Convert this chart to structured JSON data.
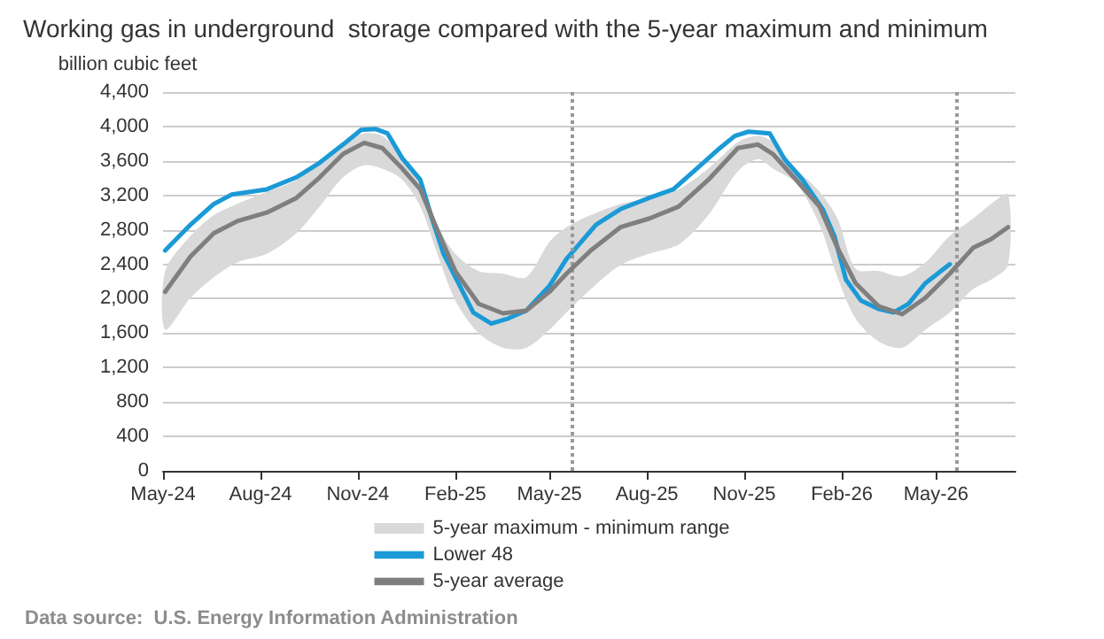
{
  "chart_data": {
    "type": "line",
    "title": "Working gas in underground  storage compared with the 5-year maximum and minimum",
    "ylabel": "billion cubic feet",
    "annotations": [
      "Data source:  U.S. Energy Information Administration"
    ],
    "xlim": [
      "2024-05-01",
      "2026-07-15"
    ],
    "xticks": [
      {
        "value": "2024-05-01",
        "label": "May-24"
      },
      {
        "value": "2024-08-01",
        "label": "Aug-24"
      },
      {
        "value": "2024-11-01",
        "label": "Nov-24"
      },
      {
        "value": "2025-02-01",
        "label": "Feb-25"
      },
      {
        "value": "2025-05-01",
        "label": "May-25"
      },
      {
        "value": "2025-08-01",
        "label": "Aug-25"
      },
      {
        "value": "2025-11-01",
        "label": "Nov-25"
      },
      {
        "value": "2026-02-01",
        "label": "Feb-26"
      },
      {
        "value": "2026-05-01",
        "label": "May-26"
      }
    ],
    "ylim": [
      0,
      4400
    ],
    "yticks": [
      0,
      400,
      800,
      {
        "value": 1200,
        "label": "1,200"
      },
      {
        "value": 1600,
        "label": "1,600"
      },
      {
        "value": 2000,
        "label": "2,000"
      },
      {
        "value": 2400,
        "label": "2,400"
      },
      {
        "value": 2800,
        "label": "2,800"
      },
      {
        "value": 3200,
        "label": "3,200"
      },
      {
        "value": 3600,
        "label": "3,600"
      },
      {
        "value": 4000,
        "label": "4,000"
      },
      {
        "value": 4400,
        "label": "4,400"
      }
    ],
    "grid": "y",
    "legend": "bottom",
    "line_style": "solid",
    "marker": "none",
    "ref_lines": [
      {
        "axis": "x",
        "value": "2025-05-22",
        "color": "#999999",
        "line_style": "dotted"
      },
      {
        "axis": "x",
        "value": "2026-05-21",
        "color": "#999999",
        "line_style": "dotted"
      }
    ],
    "series": [
      {
        "name": "5-year maximum - minimum range",
        "type": "area",
        "color": "#d9d9d9",
        "x": [
          "2024-05-03",
          "2024-05-27",
          "2024-06-18",
          "2024-07-10",
          "2024-08-07",
          "2024-09-04",
          "2024-09-26",
          "2024-10-18",
          "2024-11-07",
          "2024-11-24",
          "2024-12-13",
          "2024-12-30",
          "2025-01-15",
          "2025-02-01",
          "2025-02-23",
          "2025-03-18",
          "2025-04-09",
          "2025-05-01",
          "2025-05-17",
          "2025-06-09",
          "2025-07-07",
          "2025-08-03",
          "2025-08-31",
          "2025-09-28",
          "2025-10-26",
          "2025-11-14",
          "2025-11-28",
          "2025-12-20",
          "2026-01-11",
          "2026-01-28",
          "2026-02-14",
          "2026-03-08",
          "2026-03-30",
          "2026-04-21",
          "2026-05-14",
          "2026-06-05",
          "2026-06-22",
          "2026-07-08"
        ],
        "values": [
          null,
          null,
          null,
          null,
          null,
          null,
          null,
          null,
          null,
          null,
          null,
          null,
          null,
          null,
          null,
          null,
          null,
          null,
          null,
          null,
          null,
          null,
          null,
          null,
          null,
          null,
          null,
          null,
          null,
          null,
          null,
          null,
          null,
          null,
          null,
          null,
          null,
          null
        ],
        "lower": [
          1640,
          2010,
          2250,
          2420,
          2520,
          2760,
          3070,
          3410,
          3550,
          3510,
          3380,
          3070,
          2520,
          1980,
          1600,
          1430,
          1430,
          1640,
          1840,
          2110,
          2390,
          2520,
          2630,
          2970,
          3480,
          3620,
          3510,
          3340,
          2860,
          2250,
          1770,
          1500,
          1430,
          1640,
          1840,
          2110,
          2220,
          2390
        ],
        "upper": [
          2320,
          2730,
          2970,
          3100,
          3240,
          3380,
          3580,
          3820,
          3920,
          3890,
          3650,
          3410,
          2860,
          2520,
          2320,
          2290,
          2250,
          2660,
          2830,
          2970,
          3100,
          3170,
          3270,
          3510,
          3820,
          3890,
          3820,
          3510,
          3240,
          2930,
          2350,
          2320,
          2260,
          2420,
          2730,
          2930,
          3100,
          3210
        ]
      },
      {
        "name": "Lower 48",
        "color": "#1a9ad6",
        "x": [
          "2024-05-03",
          "2024-05-27",
          "2024-06-18",
          "2024-07-05",
          "2024-08-07",
          "2024-09-04",
          "2024-09-26",
          "2024-10-18",
          "2024-11-04",
          "2024-11-18",
          "2024-11-29",
          "2024-12-13",
          "2024-12-30",
          "2025-01-10",
          "2025-01-21",
          "2025-02-04",
          "2025-02-18",
          "2025-03-07",
          "2025-03-23",
          "2025-04-09",
          "2025-05-01",
          "2025-05-17",
          "2025-06-14",
          "2025-07-07",
          "2025-08-03",
          "2025-08-26",
          "2025-09-17",
          "2025-10-09",
          "2025-10-23",
          "2025-11-05",
          "2025-11-25",
          "2025-12-09",
          "2025-12-26",
          "2026-01-14",
          "2026-01-25",
          "2026-02-05",
          "2026-02-19",
          "2026-03-08",
          "2026-03-22",
          "2026-04-05",
          "2026-04-21",
          "2026-05-14"
        ],
        "values": [
          2560,
          2860,
          3100,
          3210,
          3270,
          3410,
          3580,
          3790,
          3960,
          3970,
          3920,
          3630,
          3380,
          2930,
          2520,
          2180,
          1840,
          1710,
          1770,
          1860,
          2150,
          2460,
          2860,
          3040,
          3170,
          3270,
          3510,
          3750,
          3890,
          3940,
          3920,
          3620,
          3380,
          3040,
          2730,
          2220,
          1980,
          1880,
          1840,
          1940,
          2180,
          2400
        ]
      },
      {
        "name": "5-year average",
        "color": "#7f7f7f",
        "x": [
          "2024-05-03",
          "2024-05-27",
          "2024-06-18",
          "2024-07-10",
          "2024-08-07",
          "2024-09-04",
          "2024-09-26",
          "2024-10-18",
          "2024-11-07",
          "2024-11-24",
          "2024-12-13",
          "2024-12-30",
          "2025-01-15",
          "2025-02-01",
          "2025-02-23",
          "2025-03-18",
          "2025-04-09",
          "2025-05-01",
          "2025-05-17",
          "2025-06-09",
          "2025-07-07",
          "2025-08-03",
          "2025-08-31",
          "2025-09-28",
          "2025-10-26",
          "2025-11-14",
          "2025-11-28",
          "2025-12-20",
          "2026-01-11",
          "2026-01-28",
          "2026-02-14",
          "2026-03-08",
          "2026-03-30",
          "2026-04-21",
          "2026-05-14",
          "2026-06-05",
          "2026-06-22",
          "2026-07-08"
        ],
        "values": [
          2080,
          2490,
          2760,
          2900,
          3000,
          3170,
          3410,
          3680,
          3810,
          3750,
          3510,
          3270,
          2800,
          2320,
          1940,
          1830,
          1860,
          2080,
          2290,
          2560,
          2830,
          2930,
          3070,
          3380,
          3750,
          3790,
          3680,
          3380,
          3070,
          2590,
          2180,
          1910,
          1820,
          2010,
          2290,
          2590,
          2690,
          2830
        ]
      }
    ]
  }
}
